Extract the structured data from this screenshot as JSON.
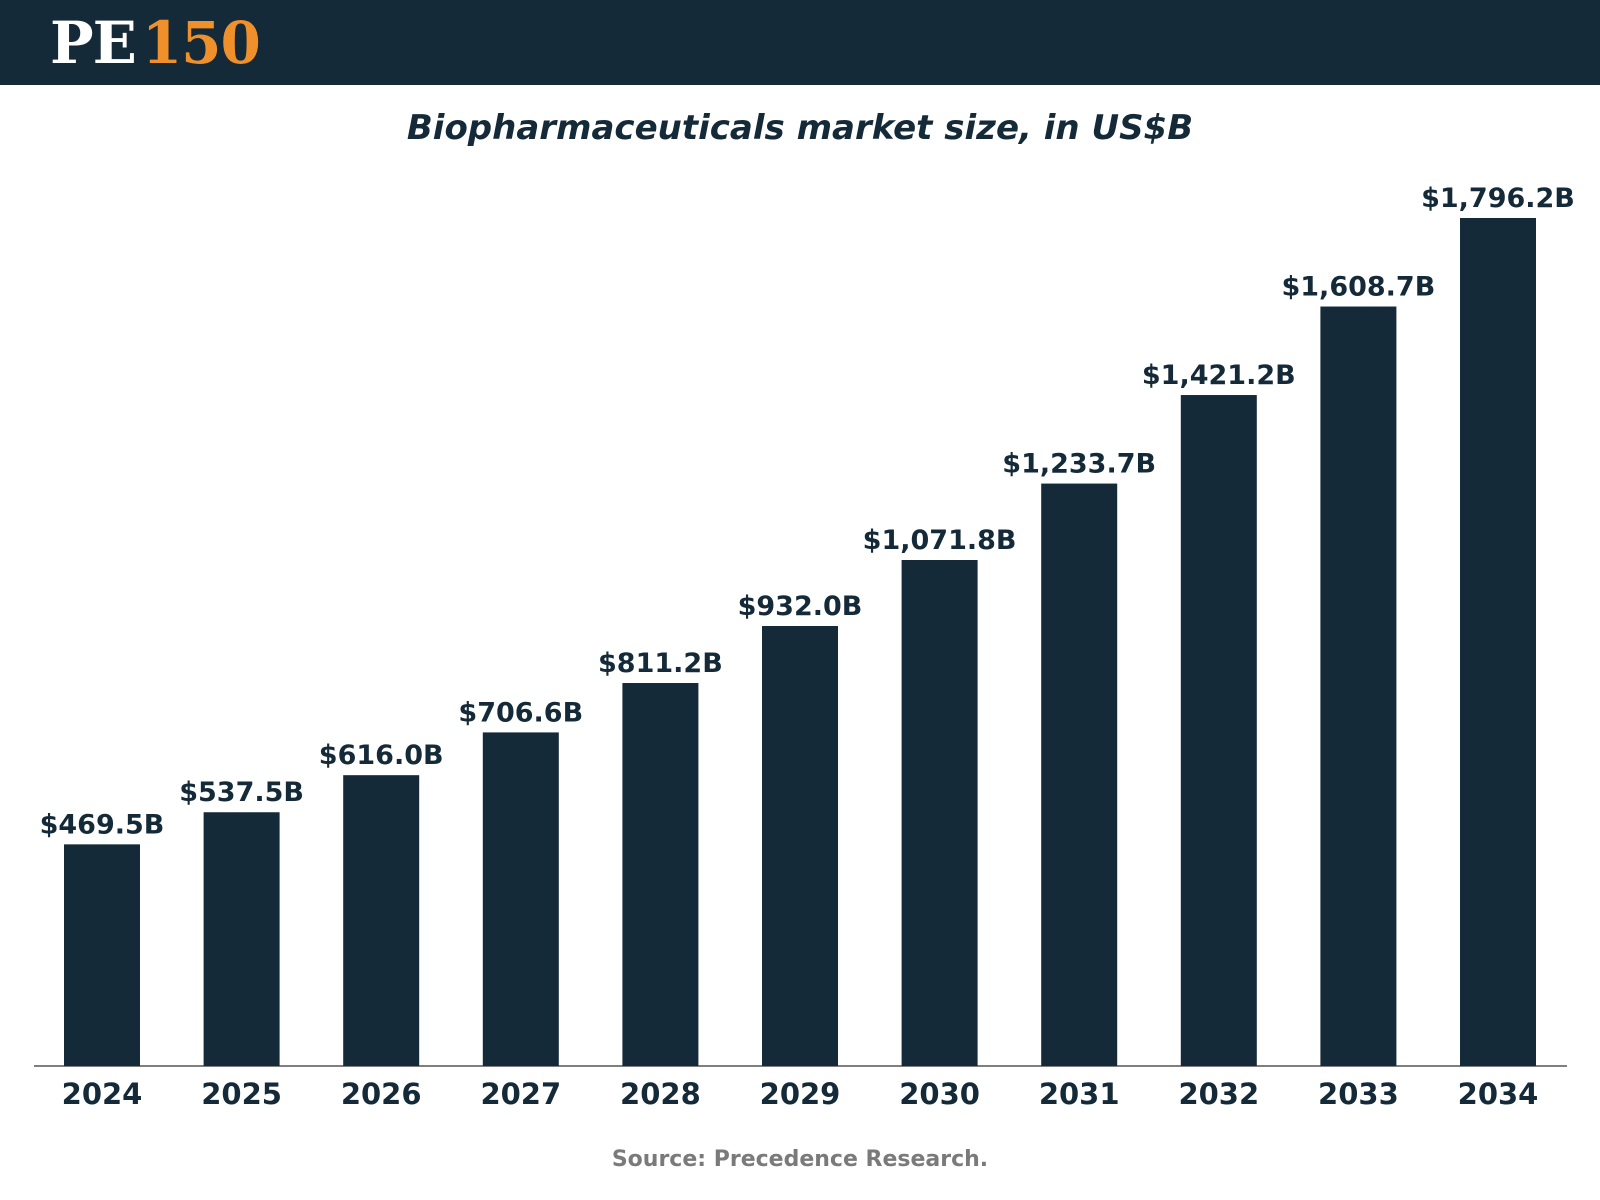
{
  "header": {
    "logo_pe": "PE",
    "logo_num": "150",
    "logo_colors": {
      "pe": "#ffffff",
      "num": "#f0902a"
    },
    "background_color": "#152a38"
  },
  "source": "Source: Precedence Research.",
  "chart_data": {
    "type": "bar",
    "title": "Biopharmaceuticals market size, in US$B",
    "xlabel": "",
    "ylabel": "",
    "categories": [
      "2024",
      "2025",
      "2026",
      "2027",
      "2028",
      "2029",
      "2030",
      "2031",
      "2032",
      "2033",
      "2034"
    ],
    "values": [
      469.5,
      537.5,
      616.0,
      706.6,
      811.2,
      932.0,
      1071.8,
      1233.7,
      1421.2,
      1608.7,
      1796.2
    ],
    "data_labels": [
      "$469.5B",
      "$537.5B",
      "$616.0B",
      "$706.6B",
      "$811.2B",
      "$932.0B",
      "$1,071.8B",
      "$1,233.7B",
      "$1,421.2B",
      "$1,608.7B",
      "$1,796.2B"
    ],
    "ylim": [
      0,
      1796.2
    ],
    "grid": false,
    "bar_color": "#152a38"
  }
}
